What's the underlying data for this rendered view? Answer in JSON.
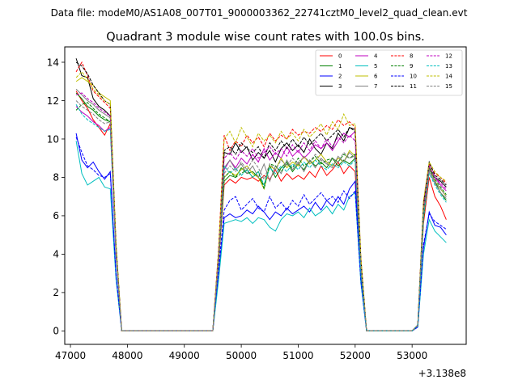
{
  "chart_data": {
    "type": "line",
    "suptitle": "Data file: modeM0/AS1A08_007T01_9000003362_22741cztM0_level2_quad_clean.evt",
    "title": "Quadrant 3 module wise count rates with 100.0s bins.",
    "xlabel": "",
    "ylabel": "",
    "x_offset_label": "+3.138e8",
    "xlim": [
      46900,
      53950
    ],
    "ylim": [
      -0.7,
      14.8
    ],
    "xticks": [
      47000,
      48000,
      49000,
      50000,
      51000,
      52000,
      53000
    ],
    "yticks": [
      0,
      2,
      4,
      6,
      8,
      10,
      12,
      14
    ],
    "grid": false,
    "legend_position": "top-right",
    "x": [
      47100,
      47200,
      47300,
      47400,
      47500,
      47600,
      47700,
      47800,
      47900,
      48000,
      48100,
      48200,
      48300,
      48400,
      48500,
      48600,
      48700,
      48800,
      48900,
      49000,
      49100,
      49200,
      49300,
      49400,
      49500,
      49600,
      49700,
      49800,
      49900,
      50000,
      50100,
      50200,
      50300,
      50400,
      50500,
      50600,
      50700,
      50800,
      50900,
      51000,
      51100,
      51200,
      51300,
      51400,
      51500,
      51600,
      51700,
      51800,
      51900,
      52000,
      52100,
      52200,
      52300,
      52400,
      52500,
      52600,
      52700,
      52800,
      52900,
      53000,
      53100,
      53200,
      53300,
      53400,
      53500,
      53600
    ],
    "series": [
      {
        "name": "0",
        "color": "#ff0000",
        "dash": false,
        "values": [
          12.5,
          12.0,
          11.6,
          11.0,
          10.6,
          10.2,
          10.8,
          4.0,
          0,
          0,
          0,
          0,
          0,
          0,
          0,
          0,
          0,
          0,
          0,
          0,
          0,
          0,
          0,
          0,
          0,
          3.5,
          7.6,
          7.9,
          7.7,
          8.0,
          7.9,
          8.0,
          7.8,
          8.1,
          7.9,
          8.4,
          7.8,
          8.2,
          7.9,
          8.1,
          7.9,
          8.3,
          8.0,
          8.6,
          8.1,
          8.4,
          8.8,
          8.2,
          8.6,
          8.3,
          3.0,
          0,
          0,
          0,
          0,
          0,
          0,
          0,
          0,
          0,
          0.3,
          5.6,
          8.0,
          7.0,
          6.5,
          5.8
        ]
      },
      {
        "name": "1",
        "color": "#008000",
        "dash": false,
        "values": [
          12.4,
          12.1,
          11.7,
          11.5,
          11.2,
          11.0,
          10.9,
          4.1,
          0,
          0,
          0,
          0,
          0,
          0,
          0,
          0,
          0,
          0,
          0,
          0,
          0,
          0,
          0,
          0,
          0,
          3.6,
          7.8,
          8.1,
          8.0,
          8.5,
          8.2,
          8.3,
          8.0,
          7.6,
          8.6,
          8.0,
          8.5,
          8.8,
          8.3,
          8.7,
          8.4,
          8.9,
          8.6,
          8.8,
          8.5,
          9.0,
          8.6,
          8.9,
          8.7,
          9.0,
          3.1,
          0,
          0,
          0,
          0,
          0,
          0,
          0,
          0,
          0,
          0.3,
          5.8,
          8.5,
          7.8,
          7.2,
          6.8
        ]
      },
      {
        "name": "2",
        "color": "#0000ff",
        "dash": false,
        "values": [
          10.3,
          8.9,
          8.5,
          8.8,
          8.3,
          7.9,
          8.3,
          2.9,
          0,
          0,
          0,
          0,
          0,
          0,
          0,
          0,
          0,
          0,
          0,
          0,
          0,
          0,
          0,
          0,
          0,
          2.8,
          5.9,
          6.1,
          5.9,
          6.0,
          6.3,
          6.1,
          6.5,
          6.2,
          5.8,
          6.2,
          6.0,
          6.4,
          6.1,
          6.3,
          6.5,
          6.2,
          6.7,
          6.3,
          6.8,
          6.5,
          7.0,
          6.6,
          7.4,
          7.8,
          2.7,
          0,
          0,
          0,
          0,
          0,
          0,
          0,
          0,
          0,
          0.2,
          4.3,
          6.2,
          5.5,
          5.4,
          5.0
        ]
      },
      {
        "name": "3",
        "color": "#000000",
        "dash": false,
        "values": [
          14.2,
          13.3,
          13.2,
          12.1,
          11.7,
          11.5,
          11.2,
          4.3,
          0,
          0,
          0,
          0,
          0,
          0,
          0,
          0,
          0,
          0,
          0,
          0,
          0,
          0,
          0,
          0,
          0,
          4.0,
          9.3,
          9.2,
          9.8,
          9.3,
          9.6,
          8.9,
          9.3,
          9.0,
          9.4,
          8.8,
          9.5,
          9.8,
          9.4,
          9.7,
          9.3,
          10.0,
          9.5,
          9.2,
          9.8,
          9.5,
          10.3,
          9.9,
          10.6,
          10.5,
          3.7,
          0,
          0,
          0,
          0,
          0,
          0,
          0,
          0,
          0,
          0.3,
          6.5,
          8.6,
          8.0,
          7.8,
          7.5
        ]
      },
      {
        "name": "4",
        "color": "#bf00bf",
        "dash": false,
        "values": [
          11.7,
          11.4,
          11.2,
          10.9,
          10.7,
          10.4,
          10.6,
          4.0,
          0,
          0,
          0,
          0,
          0,
          0,
          0,
          0,
          0,
          0,
          0,
          0,
          0,
          0,
          0,
          0,
          0,
          3.8,
          8.4,
          8.9,
          8.5,
          9.0,
          8.7,
          9.2,
          8.8,
          9.5,
          8.9,
          9.3,
          9.0,
          9.6,
          9.1,
          9.4,
          9.0,
          9.3,
          9.7,
          9.5,
          9.8,
          9.4,
          9.9,
          10.3,
          10.1,
          10.4,
          3.5,
          0,
          0,
          0,
          0,
          0,
          0,
          0,
          0,
          0,
          0.3,
          6.2,
          8.5,
          8.0,
          7.6,
          7.3
        ]
      },
      {
        "name": "5",
        "color": "#00bfbf",
        "dash": false,
        "values": [
          9.9,
          8.2,
          7.6,
          7.8,
          8.0,
          7.5,
          7.4,
          2.7,
          0,
          0,
          0,
          0,
          0,
          0,
          0,
          0,
          0,
          0,
          0,
          0,
          0,
          0,
          0,
          0,
          0,
          2.6,
          5.6,
          5.7,
          5.8,
          5.7,
          5.9,
          5.6,
          5.9,
          5.8,
          5.4,
          5.2,
          5.8,
          6.1,
          6.0,
          6.2,
          5.9,
          6.4,
          6.0,
          6.2,
          6.5,
          6.1,
          6.6,
          6.3,
          7.0,
          7.2,
          2.5,
          0,
          0,
          0,
          0,
          0,
          0,
          0,
          0,
          0,
          0.2,
          4.0,
          5.8,
          5.2,
          4.9,
          4.6
        ]
      },
      {
        "name": "6",
        "color": "#bfbf00",
        "dash": false,
        "values": [
          13.0,
          13.2,
          13.0,
          12.8,
          12.4,
          12.2,
          12.0,
          4.6,
          0,
          0,
          0,
          0,
          0,
          0,
          0,
          0,
          0,
          0,
          0,
          0,
          0,
          0,
          0,
          0,
          0,
          3.9,
          8.0,
          8.3,
          8.1,
          8.4,
          8.6,
          8.2,
          8.0,
          7.4,
          8.6,
          8.4,
          9.0,
          8.5,
          8.8,
          8.6,
          9.1,
          8.7,
          8.9,
          9.2,
          8.8,
          8.6,
          9.0,
          8.8,
          9.4,
          9.1,
          3.3,
          0,
          0,
          0,
          0,
          0,
          0,
          0,
          0,
          0,
          0.3,
          6.0,
          8.6,
          7.8,
          7.4,
          7.0
        ]
      },
      {
        "name": "7",
        "color": "#808080",
        "dash": false,
        "values": [
          12.6,
          12.3,
          12.0,
          11.8,
          11.5,
          11.3,
          11.1,
          4.2,
          0,
          0,
          0,
          0,
          0,
          0,
          0,
          0,
          0,
          0,
          0,
          0,
          0,
          0,
          0,
          0,
          0,
          3.8,
          8.5,
          8.9,
          8.4,
          8.7,
          8.2,
          8.6,
          8.0,
          8.7,
          7.8,
          8.6,
          8.2,
          8.9,
          8.4,
          8.8,
          8.3,
          8.9,
          8.5,
          9.0,
          8.7,
          8.5,
          9.1,
          8.8,
          9.3,
          9.0,
          3.2,
          0,
          0,
          0,
          0,
          0,
          0,
          0,
          0,
          0,
          0.3,
          6.0,
          8.3,
          7.7,
          7.2,
          6.9
        ]
      },
      {
        "name": "8",
        "color": "#ff0000",
        "dash": true,
        "values": [
          13.5,
          14.0,
          13.3,
          12.5,
          12.2,
          11.9,
          11.6,
          4.4,
          0,
          0,
          0,
          0,
          0,
          0,
          0,
          0,
          0,
          0,
          0,
          0,
          0,
          0,
          0,
          0,
          0,
          4.2,
          10.2,
          9.4,
          9.9,
          9.6,
          10.2,
          9.8,
          10.1,
          9.6,
          10.3,
          9.9,
          10.2,
          10.0,
          10.5,
          10.2,
          10.4,
          10.3,
          10.6,
          10.4,
          10.7,
          10.5,
          11.0,
          10.7,
          10.9,
          10.6,
          3.8,
          0,
          0,
          0,
          0,
          0,
          0,
          0,
          0,
          0,
          0.3,
          6.7,
          8.7,
          8.2,
          8.0,
          7.7
        ]
      },
      {
        "name": "9",
        "color": "#008000",
        "dash": true,
        "values": [
          11.5,
          11.8,
          11.9,
          11.6,
          11.3,
          11.1,
          10.9,
          4.1,
          0,
          0,
          0,
          0,
          0,
          0,
          0,
          0,
          0,
          0,
          0,
          0,
          0,
          0,
          0,
          0,
          0,
          3.8,
          8.0,
          8.3,
          8.0,
          8.2,
          8.4,
          8.0,
          8.3,
          7.4,
          8.7,
          8.6,
          8.3,
          8.7,
          8.5,
          9.0,
          8.6,
          8.8,
          9.1,
          8.7,
          8.9,
          9.0,
          8.8,
          9.2,
          9.0,
          9.2,
          3.2,
          0,
          0,
          0,
          0,
          0,
          0,
          0,
          0,
          0,
          0.3,
          6.1,
          8.5,
          7.9,
          7.5,
          7.1
        ]
      },
      {
        "name": "10",
        "color": "#0000ff",
        "dash": true,
        "values": [
          10.1,
          9.3,
          8.6,
          8.4,
          8.1,
          8.0,
          8.2,
          2.9,
          0,
          0,
          0,
          0,
          0,
          0,
          0,
          0,
          0,
          0,
          0,
          0,
          0,
          0,
          0,
          0,
          0,
          3.2,
          6.3,
          6.8,
          7.0,
          6.3,
          6.6,
          6.9,
          6.4,
          6.2,
          7.0,
          6.4,
          6.7,
          6.3,
          6.8,
          6.5,
          7.1,
          6.6,
          6.9,
          7.2,
          6.8,
          7.0,
          6.7,
          7.3,
          6.9,
          7.3,
          2.6,
          0,
          0,
          0,
          0,
          0,
          0,
          0,
          0,
          0,
          0.2,
          4.5,
          6.1,
          5.7,
          5.5,
          5.3
        ]
      },
      {
        "name": "11",
        "color": "#000000",
        "dash": true,
        "values": [
          14.0,
          13.8,
          13.4,
          12.8,
          12.4,
          12.0,
          11.8,
          4.5,
          0,
          0,
          0,
          0,
          0,
          0,
          0,
          0,
          0,
          0,
          0,
          0,
          0,
          0,
          0,
          0,
          0,
          4.0,
          9.4,
          9.6,
          9.2,
          9.8,
          9.5,
          9.3,
          9.6,
          9.0,
          9.8,
          9.4,
          9.9,
          9.5,
          10.0,
          9.6,
          10.1,
          9.7,
          10.0,
          10.3,
          9.9,
          10.2,
          10.5,
          10.1,
          10.6,
          10.4,
          3.7,
          0,
          0,
          0,
          0,
          0,
          0,
          0,
          0,
          0,
          0.3,
          6.6,
          8.8,
          8.1,
          7.9,
          7.6
        ]
      },
      {
        "name": "12",
        "color": "#bf00bf",
        "dash": true,
        "values": [
          12.3,
          12.4,
          12.1,
          11.9,
          11.6,
          11.4,
          11.2,
          4.2,
          0,
          0,
          0,
          0,
          0,
          0,
          0,
          0,
          0,
          0,
          0,
          0,
          0,
          0,
          0,
          0,
          0,
          3.9,
          9.0,
          9.3,
          8.9,
          9.4,
          9.1,
          9.5,
          9.0,
          9.3,
          9.6,
          9.2,
          9.5,
          9.1,
          9.7,
          9.3,
          9.8,
          9.4,
          9.9,
          9.5,
          10.0,
          9.6,
          10.1,
          9.8,
          10.2,
          9.9,
          3.5,
          0,
          0,
          0,
          0,
          0,
          0,
          0,
          0,
          0,
          0.3,
          6.4,
          8.6,
          8.0,
          7.7,
          7.4
        ]
      },
      {
        "name": "13",
        "color": "#00bfbf",
        "dash": true,
        "values": [
          11.8,
          11.3,
          11.0,
          10.8,
          10.6,
          10.4,
          10.5,
          3.9,
          0,
          0,
          0,
          0,
          0,
          0,
          0,
          0,
          0,
          0,
          0,
          0,
          0,
          0,
          0,
          0,
          0,
          3.7,
          8.6,
          8.2,
          8.5,
          8.1,
          8.4,
          8.0,
          8.3,
          7.6,
          8.5,
          8.2,
          8.6,
          8.3,
          8.7,
          8.4,
          8.8,
          8.5,
          8.9,
          8.6,
          8.4,
          8.7,
          8.5,
          8.8,
          8.6,
          8.9,
          3.1,
          0,
          0,
          0,
          0,
          0,
          0,
          0,
          0,
          0,
          0.3,
          5.9,
          8.2,
          7.6,
          7.1,
          6.7
        ]
      },
      {
        "name": "14",
        "color": "#bfbf00",
        "dash": true,
        "values": [
          13.2,
          13.5,
          13.1,
          12.6,
          12.3,
          12.0,
          11.8,
          4.5,
          0,
          0,
          0,
          0,
          0,
          0,
          0,
          0,
          0,
          0,
          0,
          0,
          0,
          0,
          0,
          0,
          0,
          4.1,
          10.0,
          10.4,
          9.8,
          10.6,
          10.1,
          9.6,
          10.3,
          9.9,
          10.2,
          9.8,
          10.4,
          10.0,
          10.3,
          9.9,
          10.5,
          10.1,
          10.4,
          10.8,
          10.2,
          10.9,
          10.5,
          11.3,
          10.7,
          10.8,
          3.9,
          0,
          0,
          0,
          0,
          0,
          0,
          0,
          0,
          0,
          0.3,
          6.8,
          8.8,
          8.3,
          8.0,
          7.8
        ]
      },
      {
        "name": "15",
        "color": "#808080",
        "dash": true,
        "values": [
          12.0,
          11.7,
          11.5,
          11.3,
          11.0,
          10.8,
          10.9,
          4.1,
          0,
          0,
          0,
          0,
          0,
          0,
          0,
          0,
          0,
          0,
          0,
          0,
          0,
          0,
          0,
          0,
          0,
          3.7,
          8.2,
          8.6,
          8.3,
          8.8,
          8.4,
          8.9,
          8.5,
          7.9,
          8.7,
          8.4,
          8.9,
          8.6,
          9.0,
          8.7,
          9.1,
          8.8,
          9.2,
          8.9,
          8.7,
          9.0,
          8.8,
          9.3,
          9.0,
          9.1,
          3.3,
          0,
          0,
          0,
          0,
          0,
          0,
          0,
          0,
          0,
          0.3,
          6.2,
          8.4,
          7.8,
          7.4,
          7.0
        ]
      }
    ]
  }
}
